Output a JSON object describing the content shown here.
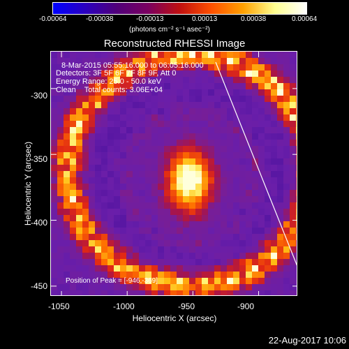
{
  "colorbar": {
    "ticks": [
      "-0.00064",
      "-0.00038",
      "-0.00013",
      "0.00013",
      "0.00038",
      "0.00064"
    ],
    "units_line": "(photons cm⁻² s⁻¹ asec⁻²)",
    "colors": [
      "#0000ff",
      "#2a00c0",
      "#50007a",
      "#7a0060",
      "#c01010",
      "#ff5000",
      "#ffa000",
      "#ffff90",
      "#ffffff"
    ]
  },
  "title": "Reconstructed RHESSI Image",
  "info": {
    "time_range": "8-Mar-2015 05:55:16.000 to 06:05:16.000",
    "detectors": "Detectors: 3F 5F 6F 7F 8F 9F, Att 0",
    "energy": "Energy Range: 25.0 - 50.0 keV",
    "clean": "Clean    Total counts: 3.06E+04"
  },
  "peak": "Position of Peak = [-946,-369]",
  "axes": {
    "xlabel": "Heliocentric X (arcsec)",
    "ylabel": "Heliocentric Y (arcsec)",
    "xticks": [
      "-1050",
      "-1000",
      "-950",
      "-900"
    ],
    "yticks": [
      "-300",
      "-350",
      "-400",
      "-450"
    ],
    "xlim": [
      -1058,
      -870
    ],
    "ylim": [
      -458,
      -272
    ]
  },
  "footer_date": "22-Aug-2017 10:06"
}
